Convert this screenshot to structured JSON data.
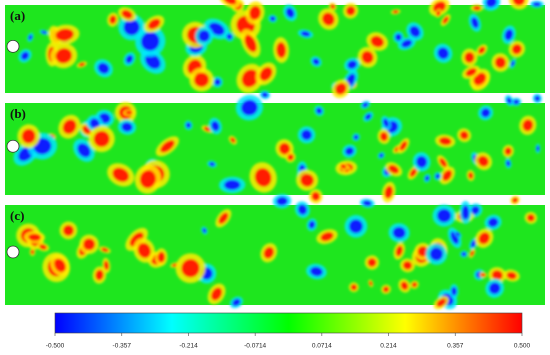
{
  "chart_data": {
    "type": "contour",
    "panels": [
      {
        "label": "(a)"
      },
      {
        "label": "(b)"
      },
      {
        "label": "(c)"
      }
    ],
    "colorbar": {
      "lim": [
        -0.5,
        0.5
      ],
      "ticks": [
        {
          "value": -0.5,
          "label": "-0.500"
        },
        {
          "value": -0.357,
          "label": "-0.357"
        },
        {
          "value": -0.214,
          "label": "-0.214"
        },
        {
          "value": -0.0714,
          "label": "-0.0714"
        },
        {
          "value": 0.0714,
          "label": "0.0714"
        },
        {
          "value": 0.214,
          "label": "0.214"
        },
        {
          "value": 0.357,
          "label": "0.357"
        },
        {
          "value": 0.5,
          "label": "0.500"
        }
      ],
      "colors": [
        "#0000ff",
        "#00ffff",
        "#00ff00",
        "#ffff00",
        "#ff0000"
      ]
    }
  }
}
